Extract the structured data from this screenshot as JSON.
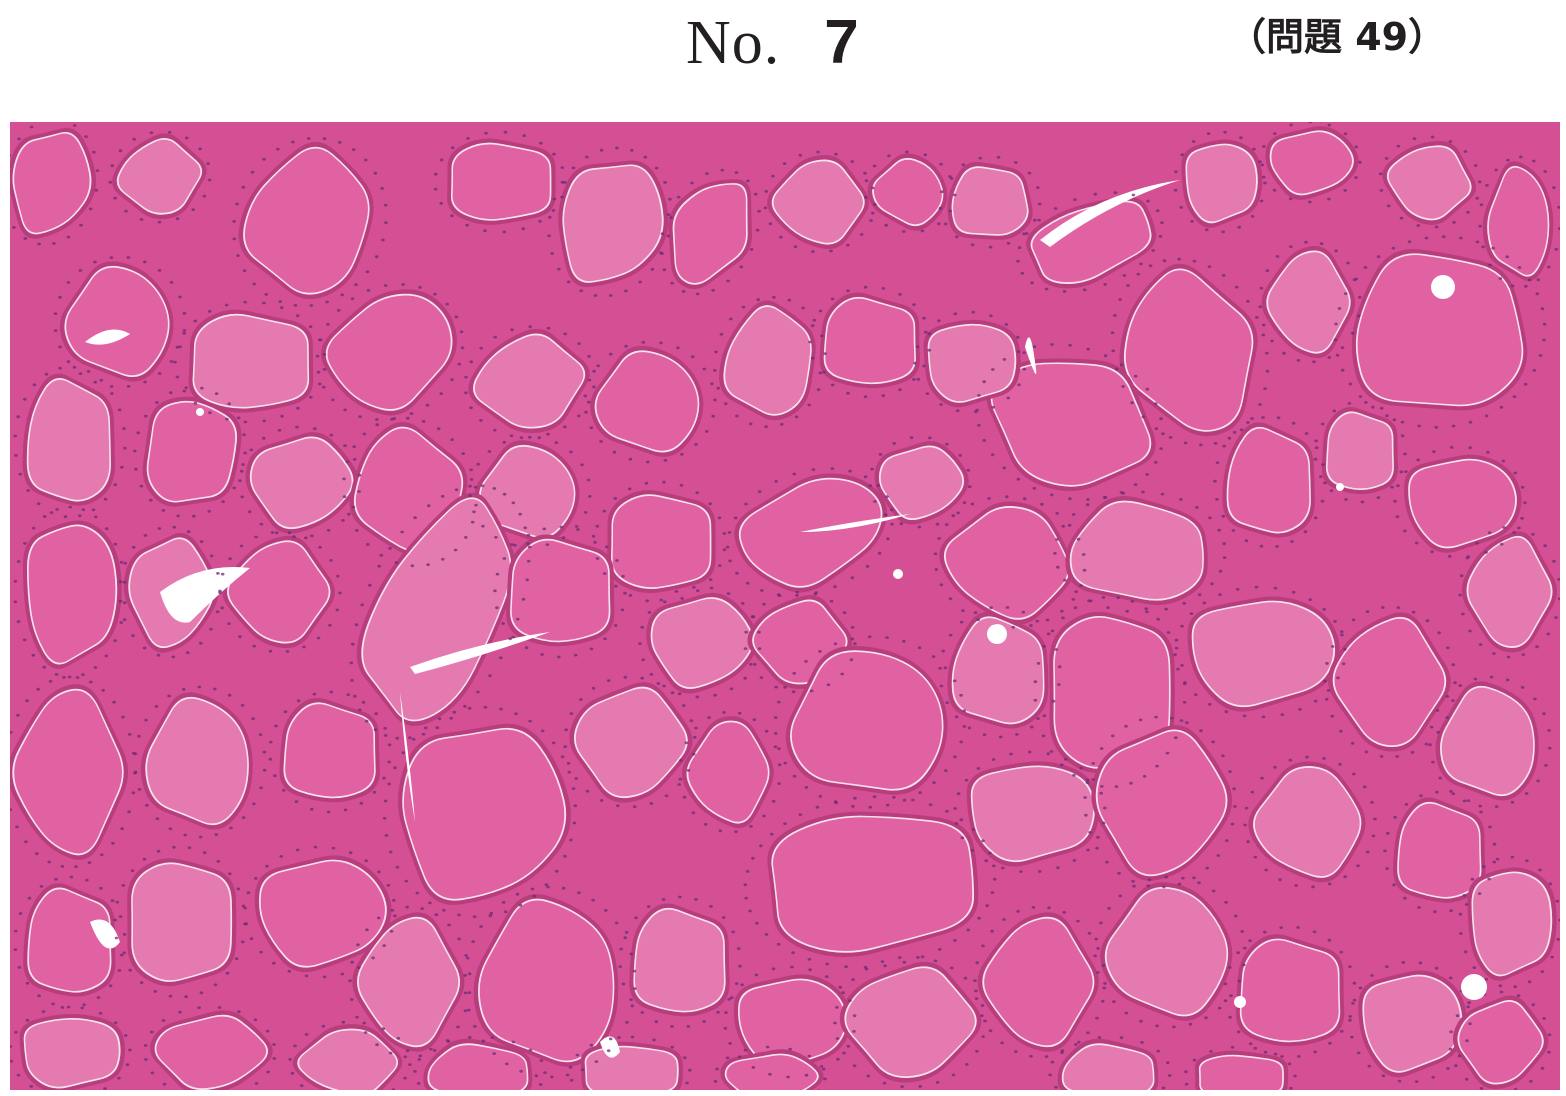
{
  "header": {
    "number_prefix": "No.",
    "number_value": "7",
    "question_ref": "（問題 49）"
  },
  "image": {
    "subject": "thyroid-follicles-histology",
    "colors": {
      "stroma": "#d44f94",
      "colloid": "#e062a3",
      "colloid_light": "#e57ab0",
      "epithelium": "#b83d7d",
      "nuclei": "#6a2c73",
      "vacuole": "#ffffff"
    }
  }
}
